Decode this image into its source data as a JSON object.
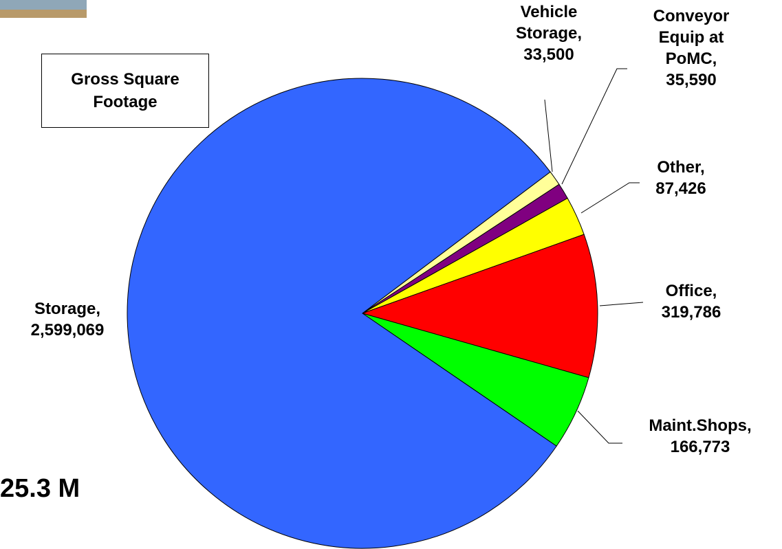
{
  "chart_data": {
    "type": "pie",
    "title": "Gross Square Footage",
    "annotation": "25.3 M",
    "categories": [
      "Vehicle Storage,",
      "Conveyor Equip at PoMC,",
      "Other,",
      "Office,",
      "Maint.Shops,",
      "Storage,"
    ],
    "values": [
      33500,
      35590,
      87426,
      319786,
      166773,
      2599069
    ],
    "value_labels": [
      "33,500",
      "35,590",
      "87,426",
      "319,786",
      "166,773",
      "2,599,069"
    ],
    "colors": [
      "#ffff99",
      "#800080",
      "#ffff00",
      "#ff0000",
      "#00ff00",
      "#3366ff"
    ]
  }
}
